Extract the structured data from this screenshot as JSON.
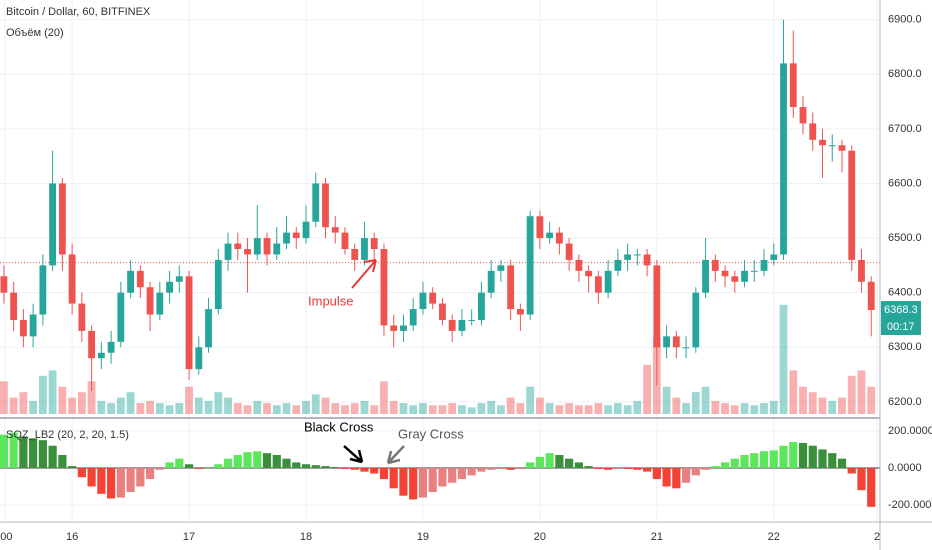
{
  "chart_data": [
    {
      "type": "candlestick",
      "title": "Bitcoin / Dollar, 60, BITFINEX",
      "subtitle": "Объём (20)",
      "candles": [
        [
          6430,
          6450,
          6380,
          6400
        ],
        [
          6400,
          6420,
          6330,
          6350
        ],
        [
          6350,
          6370,
          6300,
          6320
        ],
        [
          6320,
          6380,
          6300,
          6360
        ],
        [
          6360,
          6470,
          6340,
          6450
        ],
        [
          6450,
          6660,
          6440,
          6600
        ],
        [
          6600,
          6610,
          6440,
          6470
        ],
        [
          6470,
          6490,
          6360,
          6380
        ],
        [
          6380,
          6400,
          6310,
          6330
        ],
        [
          6330,
          6340,
          6220,
          6280
        ],
        [
          6280,
          6310,
          6260,
          6290
        ],
        [
          6290,
          6330,
          6270,
          6310
        ],
        [
          6310,
          6420,
          6300,
          6400
        ],
        [
          6400,
          6460,
          6390,
          6440
        ],
        [
          6440,
          6450,
          6390,
          6410
        ],
        [
          6410,
          6420,
          6330,
          6360
        ],
        [
          6360,
          6420,
          6350,
          6400
        ],
        [
          6400,
          6440,
          6380,
          6420
        ],
        [
          6420,
          6450,
          6400,
          6430
        ],
        [
          6430,
          6440,
          6240,
          6260
        ],
        [
          6260,
          6320,
          6250,
          6300
        ],
        [
          6300,
          6390,
          6290,
          6370
        ],
        [
          6370,
          6480,
          6360,
          6460
        ],
        [
          6460,
          6510,
          6440,
          6490
        ],
        [
          6490,
          6510,
          6460,
          6480
        ],
        [
          6480,
          6500,
          6400,
          6470
        ],
        [
          6470,
          6560,
          6460,
          6500
        ],
        [
          6500,
          6510,
          6450,
          6470
        ],
        [
          6470,
          6520,
          6460,
          6490
        ],
        [
          6490,
          6540,
          6480,
          6510
        ],
        [
          6510,
          6520,
          6480,
          6500
        ],
        [
          6500,
          6560,
          6490,
          6530
        ],
        [
          6530,
          6620,
          6520,
          6600
        ],
        [
          6600,
          6610,
          6500,
          6520
        ],
        [
          6520,
          6540,
          6490,
          6510
        ],
        [
          6510,
          6520,
          6470,
          6480
        ],
        [
          6480,
          6490,
          6440,
          6460
        ],
        [
          6460,
          6530,
          6450,
          6500
        ],
        [
          6500,
          6510,
          6460,
          6480
        ],
        [
          6480,
          6490,
          6320,
          6340
        ],
        [
          6340,
          6360,
          6300,
          6330
        ],
        [
          6330,
          6360,
          6310,
          6340
        ],
        [
          6340,
          6390,
          6330,
          6370
        ],
        [
          6370,
          6420,
          6360,
          6400
        ],
        [
          6400,
          6410,
          6370,
          6380
        ],
        [
          6380,
          6390,
          6340,
          6350
        ],
        [
          6350,
          6360,
          6310,
          6330
        ],
        [
          6330,
          6370,
          6320,
          6350
        ],
        [
          6350,
          6370,
          6340,
          6350
        ],
        [
          6350,
          6420,
          6340,
          6400
        ],
        [
          6400,
          6460,
          6390,
          6440
        ],
        [
          6440,
          6460,
          6420,
          6450
        ],
        [
          6450,
          6460,
          6350,
          6370
        ],
        [
          6370,
          6380,
          6330,
          6360
        ],
        [
          6360,
          6550,
          6350,
          6540
        ],
        [
          6540,
          6550,
          6480,
          6500
        ],
        [
          6500,
          6530,
          6490,
          6510
        ],
        [
          6510,
          6520,
          6470,
          6490
        ],
        [
          6490,
          6500,
          6440,
          6460
        ],
        [
          6460,
          6470,
          6420,
          6440
        ],
        [
          6440,
          6450,
          6400,
          6430
        ],
        [
          6430,
          6440,
          6380,
          6400
        ],
        [
          6400,
          6460,
          6390,
          6440
        ],
        [
          6440,
          6480,
          6430,
          6460
        ],
        [
          6460,
          6490,
          6440,
          6470
        ],
        [
          6470,
          6480,
          6450,
          6470
        ],
        [
          6470,
          6480,
          6430,
          6450
        ],
        [
          6450,
          6460,
          6230,
          6300
        ],
        [
          6300,
          6340,
          6280,
          6320
        ],
        [
          6320,
          6330,
          6280,
          6300
        ],
        [
          6300,
          6320,
          6280,
          6300
        ],
        [
          6300,
          6410,
          6290,
          6400
        ],
        [
          6400,
          6500,
          6390,
          6460
        ],
        [
          6460,
          6470,
          6420,
          6440
        ],
        [
          6440,
          6450,
          6410,
          6430
        ],
        [
          6430,
          6440,
          6400,
          6420
        ],
        [
          6420,
          6460,
          6410,
          6440
        ],
        [
          6440,
          6460,
          6420,
          6440
        ],
        [
          6440,
          6480,
          6430,
          6460
        ],
        [
          6460,
          6490,
          6450,
          6470
        ],
        [
          6470,
          6900,
          6460,
          6820
        ],
        [
          6820,
          6880,
          6720,
          6740
        ],
        [
          6740,
          6760,
          6690,
          6710
        ],
        [
          6710,
          6730,
          6660,
          6680
        ],
        [
          6680,
          6700,
          6610,
          6670
        ],
        [
          6670,
          6690,
          6640,
          6670
        ],
        [
          6670,
          6680,
          6620,
          6660
        ],
        [
          6660,
          6670,
          6440,
          6460
        ],
        [
          6460,
          6480,
          6400,
          6420
        ],
        [
          6420,
          6430,
          6320,
          6368.3
        ]
      ],
      "volume": [
        30,
        15,
        20,
        12,
        35,
        40,
        25,
        15,
        20,
        30,
        12,
        10,
        15,
        20,
        10,
        12,
        10,
        8,
        10,
        25,
        15,
        12,
        20,
        15,
        10,
        8,
        12,
        10,
        8,
        10,
        8,
        12,
        18,
        15,
        10,
        8,
        10,
        12,
        8,
        30,
        12,
        10,
        8,
        10,
        8,
        8,
        10,
        8,
        6,
        10,
        12,
        8,
        15,
        10,
        25,
        15,
        10,
        8,
        10,
        8,
        8,
        10,
        8,
        10,
        8,
        12,
        45,
        70,
        25,
        15,
        10,
        20,
        25,
        12,
        10,
        8,
        10,
        8,
        10,
        12,
        100,
        40,
        25,
        20,
        15,
        12,
        15,
        35,
        40,
        25
      ],
      "volume_lim": [
        0,
        110
      ],
      "up_color": "#26a69a",
      "down_color": "#ef5350",
      "xlim": [
        -0.4,
        89.9
      ],
      "xticks": [
        {
          "value": 0.1,
          "label": ":00"
        },
        {
          "value": 7,
          "label": "16"
        },
        {
          "value": 19,
          "label": "17"
        },
        {
          "value": 31,
          "label": "18"
        },
        {
          "value": 43,
          "label": "19"
        },
        {
          "value": 55,
          "label": "20"
        },
        {
          "value": 67,
          "label": "21"
        },
        {
          "value": 79,
          "label": "22"
        },
        {
          "value": 89.6,
          "label": "2"
        }
      ],
      "ylim": [
        6176,
        6936
      ],
      "yticks": [
        {
          "value": 6200,
          "label": "6200.0"
        },
        {
          "value": 6300,
          "label": "6300.0"
        },
        {
          "value": 6400,
          "label": "6400.0"
        },
        {
          "value": 6500,
          "label": "6500.0"
        },
        {
          "value": 6600,
          "label": "6600.0"
        },
        {
          "value": 6700,
          "label": "6700.0"
        },
        {
          "value": 6800,
          "label": "6800.0"
        },
        {
          "value": 6900,
          "label": "6900.0"
        }
      ],
      "ref_line": 6455,
      "last_price": 6368.3,
      "countdown": "00:17",
      "annotation": "Impulse",
      "grid": true
    },
    {
      "type": "bar",
      "title": "SQZ_LB2 (20, 2, 20, 1.5)",
      "values": [
        180,
        190,
        170,
        160,
        150,
        120,
        70,
        10,
        -50,
        -100,
        -140,
        -165,
        -160,
        -130,
        -100,
        -60,
        -10,
        30,
        50,
        20,
        -5,
        0,
        20,
        50,
        70,
        85,
        90,
        80,
        70,
        50,
        30,
        20,
        15,
        10,
        5,
        -5,
        -10,
        -20,
        -30,
        -60,
        -110,
        -150,
        -170,
        -160,
        -130,
        -100,
        -80,
        -60,
        -40,
        -20,
        -10,
        -5,
        -10,
        -5,
        30,
        60,
        80,
        70,
        50,
        30,
        10,
        -5,
        -10,
        -5,
        -5,
        -10,
        -20,
        -60,
        -100,
        -110,
        -80,
        -40,
        -10,
        10,
        30,
        50,
        70,
        80,
        90,
        95,
        120,
        140,
        135,
        120,
        100,
        80,
        50,
        -30,
        -120,
        -210
      ],
      "colors": {
        "pos_up": "#5ce65c",
        "pos_down": "#3a8f3a",
        "neg_down": "#f44336",
        "neg_up": "#e88080"
      },
      "ylim": [
        -292,
        259
      ],
      "yticks": [
        {
          "value": 200,
          "label": "200.0000"
        },
        {
          "value": 0,
          "label": "0.0000"
        },
        {
          "value": -200,
          "label": "-200.0000"
        }
      ],
      "annotations": [
        "Black Cross",
        "Gray Cross"
      ],
      "grid": true
    }
  ]
}
